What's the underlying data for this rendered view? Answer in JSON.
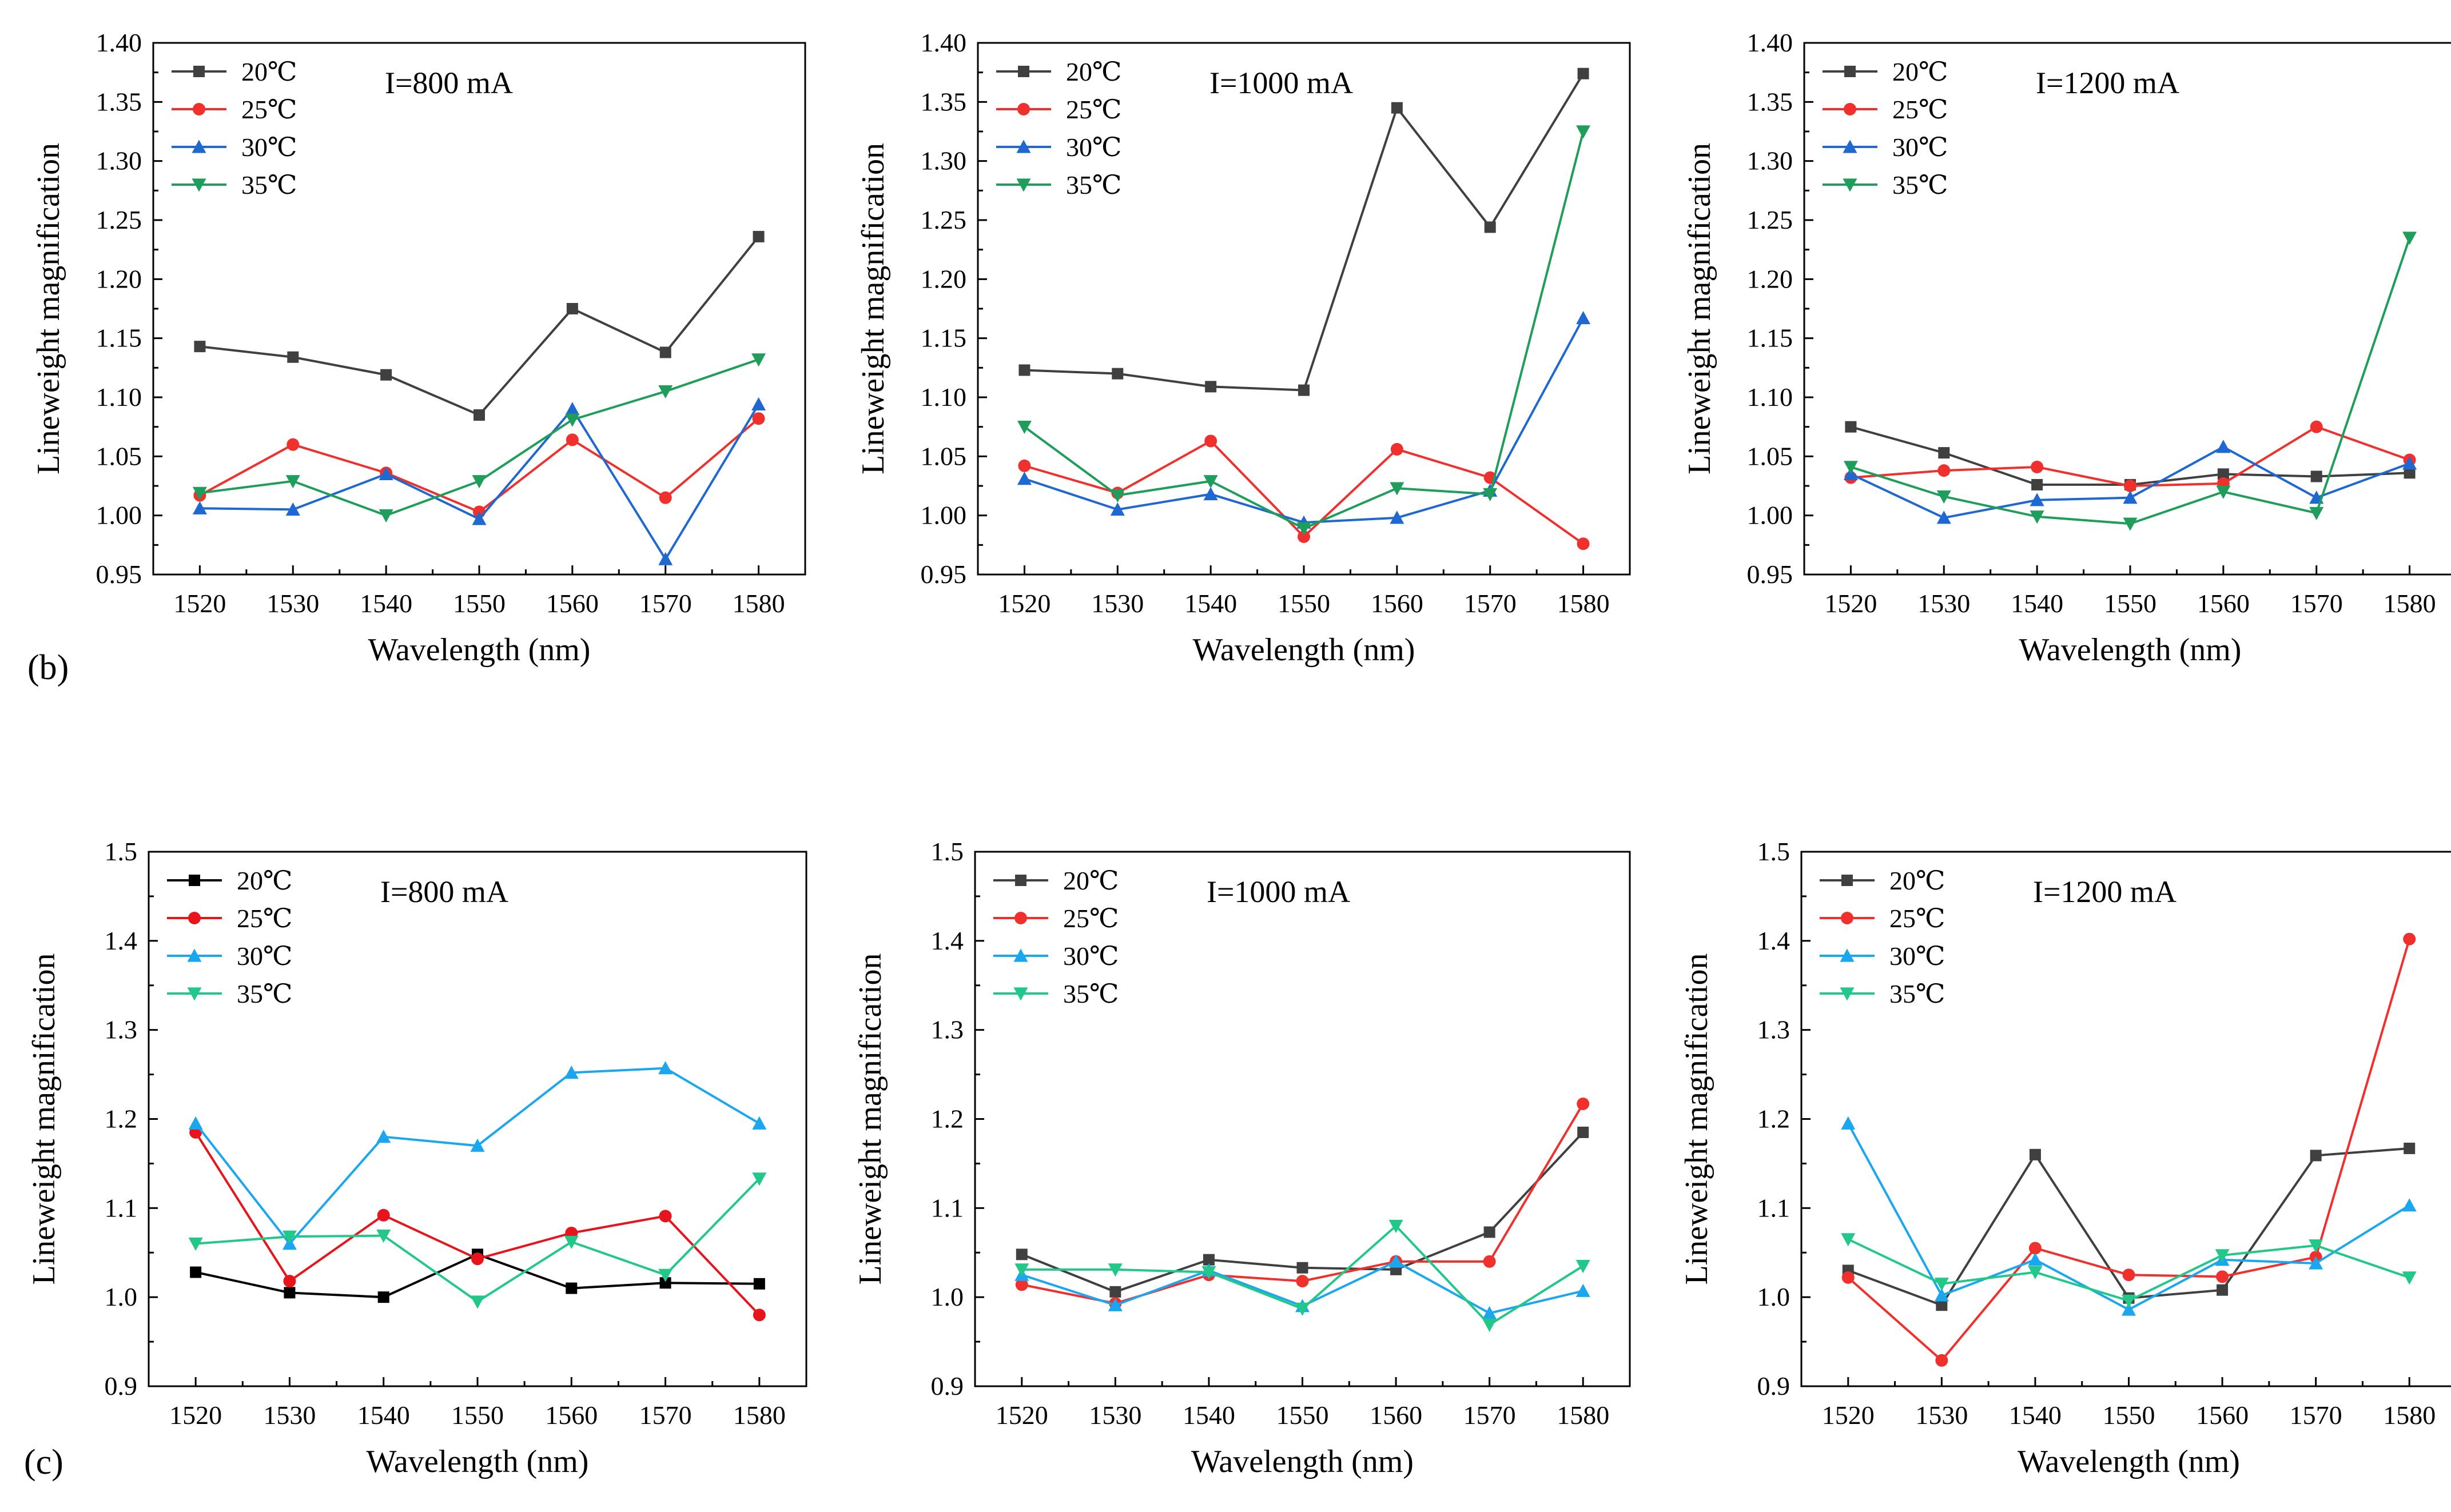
{
  "figure": {
    "row_labels": [
      "(b)",
      "(c)"
    ],
    "legend_entries": [
      "20℃",
      "25℃",
      "30℃",
      "35℃"
    ]
  },
  "chart_data": [
    {
      "type": "line",
      "panel": "b-800",
      "annotation": "I=800 mA",
      "xlabel": "Wavelength (nm)",
      "ylabel": "Lineweight magnification",
      "x": [
        1520,
        1530,
        1540,
        1550,
        1560,
        1570,
        1580
      ],
      "xlim": [
        1515,
        1585
      ],
      "ylim": [
        0.95,
        1.4
      ],
      "yticks": [
        "0.95",
        "1.00",
        "1.05",
        "1.10",
        "1.15",
        "1.20",
        "1.25",
        "1.30",
        "1.35",
        "1.40"
      ],
      "legend_position": "top-left",
      "series": [
        {
          "name": "20℃",
          "color": "#404040",
          "marker": "square",
          "values": [
            1.143,
            1.134,
            1.119,
            1.085,
            1.175,
            1.138,
            1.236
          ]
        },
        {
          "name": "25℃",
          "color": "#f0302c",
          "marker": "circle",
          "values": [
            1.017,
            1.06,
            1.036,
            1.003,
            1.064,
            1.015,
            1.082
          ]
        },
        {
          "name": "30℃",
          "color": "#1f68d2",
          "marker": "triangle-up",
          "values": [
            1.006,
            1.005,
            1.035,
            0.997,
            1.09,
            0.963,
            1.094
          ]
        },
        {
          "name": "35℃",
          "color": "#1e9e5a",
          "marker": "triangle-down",
          "values": [
            1.019,
            1.029,
            1.0,
            1.029,
            1.081,
            1.105,
            1.132
          ]
        }
      ]
    },
    {
      "type": "line",
      "panel": "b-1000",
      "annotation": "I=1000 mA",
      "xlabel": "Wavelength (nm)",
      "ylabel": "Lineweight magnification",
      "x": [
        1520,
        1530,
        1540,
        1550,
        1560,
        1570,
        1580
      ],
      "xlim": [
        1515,
        1585
      ],
      "ylim": [
        0.95,
        1.4
      ],
      "yticks": [
        "0.95",
        "1.00",
        "1.05",
        "1.10",
        "1.15",
        "1.20",
        "1.25",
        "1.30",
        "1.35",
        "1.40"
      ],
      "legend_position": "top-left",
      "series": [
        {
          "name": "20℃",
          "color": "#404040",
          "marker": "square",
          "values": [
            1.123,
            1.12,
            1.109,
            1.106,
            1.345,
            1.244,
            1.374
          ]
        },
        {
          "name": "25℃",
          "color": "#f0302c",
          "marker": "circle",
          "values": [
            1.042,
            1.019,
            1.063,
            0.982,
            1.056,
            1.032,
            0.976
          ]
        },
        {
          "name": "30℃",
          "color": "#1f68d2",
          "marker": "triangle-up",
          "values": [
            1.031,
            1.005,
            1.018,
            0.994,
            0.998,
            1.021,
            1.167
          ]
        },
        {
          "name": "35℃",
          "color": "#1e9e5a",
          "marker": "triangle-down",
          "values": [
            1.075,
            1.017,
            1.029,
            0.989,
            1.023,
            1.018,
            1.325
          ]
        }
      ]
    },
    {
      "type": "line",
      "panel": "b-1200",
      "annotation": "I=1200 mA",
      "xlabel": "Wavelength (nm)",
      "ylabel": "Lineweight magnification",
      "x": [
        1520,
        1530,
        1540,
        1550,
        1560,
        1570,
        1580
      ],
      "xlim": [
        1515,
        1585
      ],
      "ylim": [
        0.95,
        1.4
      ],
      "yticks": [
        "0.95",
        "1.00",
        "1.05",
        "1.10",
        "1.15",
        "1.20",
        "1.25",
        "1.30",
        "1.35",
        "1.40"
      ],
      "legend_position": "top-left",
      "series": [
        {
          "name": "20℃",
          "color": "#404040",
          "marker": "square",
          "values": [
            1.075,
            1.053,
            1.026,
            1.026,
            1.035,
            1.033,
            1.036
          ]
        },
        {
          "name": "25℃",
          "color": "#f0302c",
          "marker": "circle",
          "values": [
            1.032,
            1.038,
            1.041,
            1.025,
            1.027,
            1.075,
            1.047
          ]
        },
        {
          "name": "30℃",
          "color": "#1f68d2",
          "marker": "triangle-up",
          "values": [
            1.035,
            0.998,
            1.013,
            1.015,
            1.058,
            1.015,
            1.044
          ]
        },
        {
          "name": "35℃",
          "color": "#1e9e5a",
          "marker": "triangle-down",
          "values": [
            1.041,
            1.016,
            0.999,
            0.993,
            1.02,
            1.002,
            1.235
          ]
        }
      ]
    },
    {
      "type": "line",
      "panel": "c-800",
      "annotation": "I=800 mA",
      "xlabel": "Wavelength (nm)",
      "ylabel": "Lineweight magnification",
      "x": [
        1520,
        1530,
        1540,
        1550,
        1560,
        1570,
        1580
      ],
      "xlim": [
        1515,
        1585
      ],
      "ylim": [
        0.9,
        1.5
      ],
      "yticks": [
        "0.9",
        "1.0",
        "1.1",
        "1.2",
        "1.3",
        "1.4",
        "1.5"
      ],
      "legend_position": "top-left",
      "series": [
        {
          "name": "20℃",
          "color": "#000000",
          "marker": "square",
          "values": [
            1.028,
            1.005,
            1.0,
            1.048,
            1.01,
            1.016,
            1.015
          ]
        },
        {
          "name": "25℃",
          "color": "#e8141b",
          "marker": "circle",
          "values": [
            1.185,
            1.018,
            1.092,
            1.043,
            1.072,
            1.091,
            0.98
          ]
        },
        {
          "name": "30℃",
          "color": "#1aa7f0",
          "marker": "triangle-up",
          "values": [
            1.195,
            1.06,
            1.18,
            1.17,
            1.252,
            1.257,
            1.195
          ]
        },
        {
          "name": "35℃",
          "color": "#22c78a",
          "marker": "triangle-down",
          "values": [
            1.06,
            1.068,
            1.069,
            0.995,
            1.062,
            1.025,
            1.133
          ]
        }
      ]
    },
    {
      "type": "line",
      "panel": "c-1000",
      "annotation": "I=1000 mA",
      "xlabel": "Wavelength (nm)",
      "ylabel": "Lineweight magnification",
      "x": [
        1520,
        1530,
        1540,
        1550,
        1560,
        1570,
        1580
      ],
      "xlim": [
        1515,
        1585
      ],
      "ylim": [
        0.9,
        1.5
      ],
      "yticks": [
        "0.9",
        "1.0",
        "1.1",
        "1.2",
        "1.3",
        "1.4",
        "1.5"
      ],
      "legend_position": "top-left",
      "series": [
        {
          "name": "20℃",
          "color": "#404040",
          "marker": "square",
          "values": [
            1.048,
            1.006,
            1.042,
            1.033,
            1.031,
            1.073,
            1.185
          ]
        },
        {
          "name": "25℃",
          "color": "#f0302c",
          "marker": "circle",
          "values": [
            1.014,
            0.993,
            1.025,
            1.018,
            1.04,
            1.04,
            1.217
          ]
        },
        {
          "name": "30℃",
          "color": "#1aa7f0",
          "marker": "triangle-up",
          "values": [
            1.025,
            0.991,
            1.03,
            0.99,
            1.04,
            0.982,
            1.007
          ]
        },
        {
          "name": "35℃",
          "color": "#22c78a",
          "marker": "triangle-down",
          "values": [
            1.031,
            1.031,
            1.028,
            0.987,
            1.08,
            0.969,
            1.035
          ]
        }
      ]
    },
    {
      "type": "line",
      "panel": "c-1200",
      "annotation": "I=1200 mA",
      "xlabel": "Wavelength (nm)",
      "ylabel": "Lineweight magnification",
      "x": [
        1520,
        1530,
        1540,
        1550,
        1560,
        1570,
        1580
      ],
      "xlim": [
        1515,
        1585
      ],
      "ylim": [
        0.9,
        1.5
      ],
      "yticks": [
        "0.9",
        "1.0",
        "1.1",
        "1.2",
        "1.3",
        "1.4",
        "1.5"
      ],
      "legend_position": "top-left",
      "series": [
        {
          "name": "20℃",
          "color": "#404040",
          "marker": "square",
          "values": [
            1.03,
            0.991,
            1.16,
            0.999,
            1.008,
            1.159,
            1.167
          ]
        },
        {
          "name": "25℃",
          "color": "#f0302c",
          "marker": "circle",
          "values": [
            1.022,
            0.929,
            1.055,
            1.025,
            1.023,
            1.045,
            1.402
          ]
        },
        {
          "name": "30℃",
          "color": "#1aa7f0",
          "marker": "triangle-up",
          "values": [
            1.195,
            1.002,
            1.042,
            0.986,
            1.042,
            1.038,
            1.103
          ]
        },
        {
          "name": "35℃",
          "color": "#22c78a",
          "marker": "triangle-down",
          "values": [
            1.065,
            1.015,
            1.028,
            0.996,
            1.047,
            1.058,
            1.022
          ]
        }
      ]
    }
  ]
}
